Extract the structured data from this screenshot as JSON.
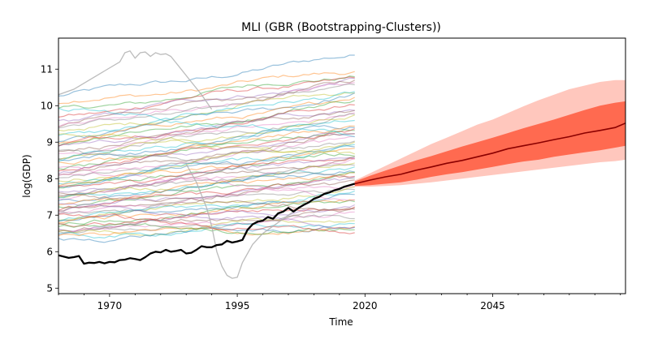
{
  "chart_data": {
    "type": "line",
    "title": "MLI (GBR (Bootstrapping-Clusters))",
    "xlabel": "Time",
    "ylabel": "log(GDP)",
    "xlim": [
      1960,
      2071
    ],
    "ylim": [
      4.85,
      11.85
    ],
    "x_ticks": [
      1970,
      1995,
      2020,
      2045
    ],
    "y_ticks": [
      5,
      6,
      7,
      8,
      9,
      10,
      11
    ],
    "grid": false,
    "background_series": {
      "description_count": 70,
      "x_range": [
        1960,
        2018
      ],
      "palette": [
        "#1f77b4",
        "#ff7f0e",
        "#2ca02c",
        "#d62728",
        "#9467bd",
        "#8c564b",
        "#e377c2",
        "#7f7f7f",
        "#bcbd22",
        "#17becf"
      ],
      "opacity": 0.45,
      "start_levels": [
        10.25,
        10.05,
        9.85,
        9.7,
        9.6,
        9.5,
        9.45,
        9.35,
        9.25,
        9.15,
        9.05,
        9.0,
        8.95,
        8.9,
        8.85,
        8.75,
        8.7,
        8.6,
        8.55,
        8.5,
        8.45,
        8.4,
        8.3,
        8.25,
        8.2,
        8.1,
        8.05,
        8.0,
        7.95,
        7.9,
        7.85,
        7.8,
        7.75,
        7.7,
        7.65,
        7.6,
        7.55,
        7.5,
        7.45,
        7.4,
        7.35,
        7.3,
        7.25,
        7.2,
        7.15,
        7.1,
        7.05,
        7.0,
        6.95,
        6.9,
        6.85,
        6.8,
        6.75,
        6.7,
        6.65,
        6.6,
        6.55,
        6.5,
        6.45,
        6.4,
        6.35,
        6.5,
        6.7,
        7.0,
        7.3,
        7.6,
        8.3,
        8.8,
        9.3,
        9.9
      ],
      "end_levels": [
        11.35,
        10.95,
        10.85,
        10.8,
        10.7,
        10.65,
        10.6,
        10.55,
        10.45,
        10.4,
        10.3,
        10.2,
        10.1,
        10.0,
        9.95,
        9.9,
        9.8,
        9.75,
        9.65,
        9.6,
        9.5,
        9.45,
        9.4,
        9.3,
        9.25,
        9.2,
        9.1,
        9.05,
        9.0,
        8.9,
        8.85,
        8.8,
        8.7,
        8.65,
        8.6,
        8.5,
        8.45,
        8.4,
        8.35,
        8.3,
        8.25,
        8.2,
        8.1,
        8.0,
        7.95,
        7.9,
        7.85,
        7.8,
        7.7,
        7.6,
        7.5,
        7.45,
        7.4,
        7.3,
        7.25,
        7.1,
        7.0,
        6.95,
        6.9,
        6.8,
        6.7,
        6.6,
        6.55,
        6.5,
        6.7,
        7.2,
        7.5,
        8.0,
        8.6,
        9.2
      ]
    },
    "special_series": [
      {
        "color": "#b0b0b0",
        "x": [
          1960,
          1963,
          1966,
          1969,
          1972,
          1973,
          1974,
          1975,
          1976,
          1977,
          1978,
          1979,
          1980,
          1981,
          1982,
          1984,
          1986,
          1988,
          1990
        ],
        "values": [
          10.3,
          10.45,
          10.7,
          10.95,
          11.2,
          11.45,
          11.5,
          11.3,
          11.45,
          11.47,
          11.35,
          11.45,
          11.4,
          11.42,
          11.35,
          11.0,
          10.65,
          10.3,
          9.9
        ]
      },
      {
        "color": "#b0b0b0",
        "x": [
          1985,
          1987,
          1989,
          1990,
          1991,
          1992,
          1993,
          1994,
          1995,
          1996,
          1998,
          2000,
          2003,
          2006
        ],
        "values": [
          8.4,
          7.9,
          7.2,
          6.7,
          6.0,
          5.6,
          5.35,
          5.27,
          5.3,
          5.7,
          6.2,
          6.5,
          6.8,
          7.1
        ]
      }
    ],
    "highlighted_series": {
      "color": "#000000",
      "x": [
        1960,
        1962,
        1963,
        1964,
        1965,
        1966,
        1967,
        1968,
        1969,
        1970,
        1971,
        1972,
        1973,
        1974,
        1975,
        1976,
        1977,
        1978,
        1979,
        1980,
        1981,
        1982,
        1983,
        1984,
        1985,
        1986,
        1987,
        1988,
        1989,
        1990,
        1991,
        1992,
        1993,
        1994,
        1995,
        1996,
        1997,
        1998,
        1999,
        2000,
        2001,
        2002,
        2003,
        2004,
        2005,
        2006,
        2007,
        2008,
        2009,
        2010,
        2011,
        2012,
        2013,
        2014,
        2015,
        2016,
        2017,
        2018
      ],
      "values": [
        5.9,
        5.83,
        5.85,
        5.88,
        5.67,
        5.7,
        5.69,
        5.72,
        5.68,
        5.72,
        5.71,
        5.77,
        5.78,
        5.82,
        5.8,
        5.77,
        5.85,
        5.95,
        6.0,
        5.98,
        6.05,
        6.0,
        6.02,
        6.05,
        5.95,
        5.97,
        6.05,
        6.15,
        6.12,
        6.12,
        6.18,
        6.2,
        6.3,
        6.25,
        6.28,
        6.32,
        6.6,
        6.75,
        6.82,
        6.85,
        6.95,
        6.9,
        7.05,
        7.1,
        7.2,
        7.1,
        7.2,
        7.28,
        7.35,
        7.45,
        7.5,
        7.58,
        7.62,
        7.68,
        7.72,
        7.78,
        7.82,
        7.86
      ]
    },
    "forecast": {
      "x": [
        2018,
        2021,
        2024,
        2027,
        2030,
        2033,
        2036,
        2039,
        2042,
        2045,
        2048,
        2051,
        2054,
        2057,
        2060,
        2063,
        2066,
        2069,
        2071
      ],
      "median": [
        7.86,
        7.96,
        8.05,
        8.12,
        8.23,
        8.32,
        8.42,
        8.5,
        8.6,
        8.7,
        8.82,
        8.9,
        8.98,
        9.07,
        9.15,
        9.25,
        9.32,
        9.4,
        9.52
      ],
      "inner_lower": [
        7.8,
        7.82,
        7.86,
        7.9,
        7.97,
        8.05,
        8.12,
        8.18,
        8.25,
        8.32,
        8.4,
        8.47,
        8.52,
        8.6,
        8.66,
        8.72,
        8.78,
        8.85,
        8.9
      ],
      "inner_upper": [
        7.92,
        8.08,
        8.22,
        8.36,
        8.5,
        8.62,
        8.75,
        8.88,
        9.0,
        9.12,
        9.25,
        9.38,
        9.5,
        9.62,
        9.75,
        9.88,
        10.0,
        10.08,
        10.12
      ],
      "outer_lower": [
        7.78,
        7.78,
        7.8,
        7.82,
        7.86,
        7.9,
        7.95,
        8.0,
        8.05,
        8.1,
        8.15,
        8.2,
        8.25,
        8.3,
        8.35,
        8.4,
        8.45,
        8.48,
        8.52
      ],
      "outer_upper": [
        7.95,
        8.15,
        8.35,
        8.55,
        8.75,
        8.95,
        9.12,
        9.3,
        9.48,
        9.62,
        9.8,
        9.98,
        10.15,
        10.3,
        10.45,
        10.55,
        10.65,
        10.7,
        10.7
      ],
      "inner_color": "#ff6a50",
      "outer_color": "#ffc7bd",
      "median_color": "#8b0000"
    }
  }
}
